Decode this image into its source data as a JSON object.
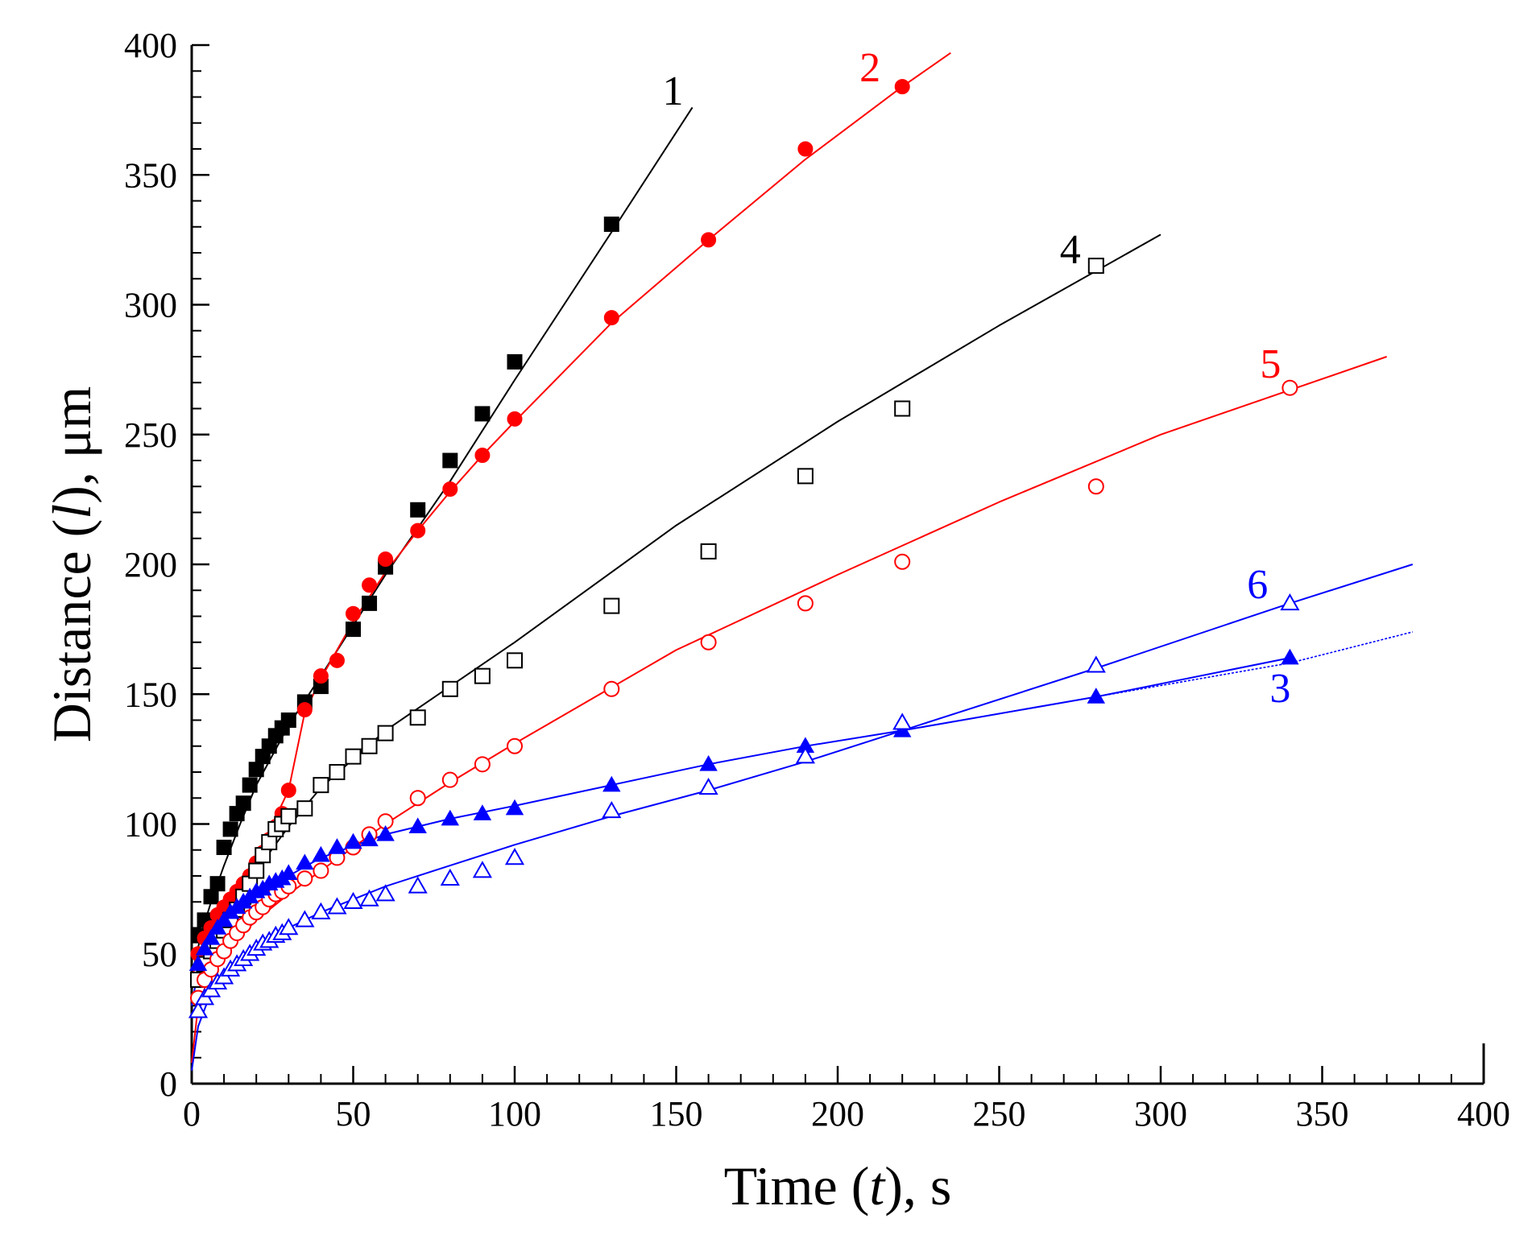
{
  "chart_data": {
    "type": "scatter",
    "title": "",
    "xlabel": {
      "pre": "Time (",
      "var": "t",
      "post": "), s"
    },
    "ylabel": {
      "pre": "Distance (",
      "var": "l",
      "post": "), μm"
    },
    "xlim": [
      0,
      400
    ],
    "ylim": [
      0,
      400
    ],
    "xticks": [
      0,
      50,
      100,
      150,
      200,
      250,
      300,
      350,
      400
    ],
    "yticks": [
      0,
      50,
      100,
      150,
      200,
      250,
      300,
      350,
      400
    ],
    "xtick_labels": [
      "0",
      "50",
      "100",
      "150",
      "200",
      "250",
      "300",
      "350",
      "400"
    ],
    "ytick_labels": [
      "0",
      "50",
      "100",
      "150",
      "200",
      "250",
      "300",
      "350",
      "400"
    ],
    "grid": false,
    "series": [
      {
        "name": "1",
        "label": "1",
        "color": "#000000",
        "marker": "square",
        "filled": true,
        "x": [
          2,
          4,
          6,
          8,
          10,
          12,
          14,
          16,
          18,
          20,
          22,
          24,
          26,
          28,
          30,
          35,
          40,
          50,
          55,
          60,
          70,
          80,
          90,
          100,
          130
        ],
        "y": [
          57,
          63,
          72,
          77,
          91,
          98,
          104,
          108,
          115,
          121,
          126,
          130,
          134,
          137,
          140,
          147,
          153,
          175,
          185,
          199,
          221,
          240,
          258,
          278,
          331
        ],
        "fit_x": [
          0,
          1,
          3,
          6,
          10,
          15,
          20,
          30,
          40,
          60,
          80,
          100,
          130,
          155
        ],
        "fit_y": [
          38,
          47,
          58,
          70,
          84,
          100,
          115,
          138,
          157,
          196,
          232,
          271,
          328,
          376
        ]
      },
      {
        "name": "2",
        "label": "2",
        "color": "#ff0000",
        "marker": "circle",
        "filled": true,
        "x": [
          2,
          4,
          6,
          8,
          10,
          12,
          14,
          16,
          18,
          20,
          22,
          24,
          26,
          28,
          30,
          35,
          40,
          45,
          50,
          55,
          60,
          70,
          80,
          90,
          100,
          130,
          160,
          190,
          220
        ],
        "y": [
          50,
          56,
          60,
          65,
          68,
          71,
          74,
          77,
          80,
          85,
          89,
          94,
          99,
          104,
          113,
          144,
          157,
          163,
          181,
          192,
          202,
          213,
          229,
          242,
          256,
          295,
          325,
          360,
          384
        ],
        "fit_x": [
          0,
          2,
          5,
          10,
          15,
          20,
          25,
          30,
          35,
          40,
          50,
          60,
          70,
          80,
          90,
          100,
          130,
          160,
          190,
          220,
          235
        ],
        "fit_y": [
          40,
          50,
          58,
          68,
          75,
          85,
          100,
          113,
          143,
          156,
          178,
          197,
          213,
          228,
          242,
          255,
          293,
          325,
          356,
          384,
          397
        ]
      },
      {
        "name": "4",
        "label": "4",
        "color": "#000000",
        "marker": "square",
        "filled": false,
        "x": [
          2,
          4,
          6,
          8,
          10,
          12,
          14,
          16,
          18,
          20,
          22,
          24,
          26,
          28,
          30,
          35,
          40,
          45,
          50,
          55,
          60,
          70,
          80,
          90,
          100,
          130,
          160,
          190,
          220,
          280
        ],
        "y": [
          40,
          46,
          51,
          55,
          59,
          63,
          67,
          72,
          77,
          82,
          88,
          93,
          98,
          100,
          103,
          106,
          115,
          120,
          126,
          130,
          135,
          141,
          152,
          157,
          163,
          184,
          205,
          234,
          260,
          315
        ],
        "fit_x": [
          0,
          2,
          5,
          10,
          20,
          30,
          40,
          60,
          80,
          100,
          150,
          200,
          250,
          300
        ],
        "fit_y": [
          36,
          45,
          55,
          65,
          82,
          99,
          114,
          136,
          153,
          170,
          215,
          255,
          292,
          327
        ]
      },
      {
        "name": "5",
        "label": "5",
        "color": "#ff0000",
        "marker": "circle",
        "filled": false,
        "x": [
          2,
          4,
          6,
          8,
          10,
          12,
          14,
          16,
          18,
          20,
          22,
          24,
          26,
          28,
          30,
          35,
          40,
          45,
          50,
          55,
          60,
          70,
          80,
          90,
          100,
          130,
          160,
          190,
          220,
          280,
          340
        ],
        "y": [
          33,
          40,
          44,
          48,
          51,
          55,
          58,
          61,
          64,
          66,
          68,
          71,
          73,
          74,
          76,
          79,
          82,
          87,
          91,
          96,
          101,
          110,
          117,
          123,
          130,
          152,
          170,
          185,
          201,
          230,
          268
        ],
        "fit_x": [
          0,
          2,
          5,
          10,
          20,
          30,
          40,
          60,
          80,
          100,
          150,
          200,
          250,
          300,
          370
        ],
        "fit_y": [
          8,
          30,
          40,
          50,
          63,
          73,
          82,
          100,
          116,
          131,
          167,
          196,
          224,
          250,
          280
        ]
      },
      {
        "name": "3",
        "label": "3",
        "color": "#0000ff",
        "marker": "triangle",
        "filled": true,
        "x": [
          2,
          4,
          6,
          8,
          10,
          12,
          14,
          16,
          18,
          20,
          22,
          24,
          26,
          28,
          30,
          35,
          40,
          45,
          50,
          55,
          60,
          70,
          80,
          90,
          100,
          130,
          160,
          190,
          220,
          280,
          340
        ],
        "y": [
          46,
          52,
          56,
          60,
          63,
          66,
          68,
          70,
          72,
          74,
          75,
          77,
          78,
          79,
          81,
          85,
          88,
          91,
          93,
          94,
          96,
          99,
          102,
          104,
          106,
          115,
          123,
          130,
          136,
          149,
          164
        ],
        "fit_x": [
          0,
          2,
          5,
          10,
          20,
          30,
          40,
          60,
          80,
          100,
          130,
          160,
          190,
          220,
          280,
          340
        ],
        "fit_y": [
          30,
          44,
          52,
          60,
          72,
          80,
          87,
          96,
          102,
          107,
          115,
          123,
          130,
          136,
          149,
          164
        ]
      },
      {
        "name": "6",
        "label": "6",
        "color": "#0000ff",
        "marker": "triangle",
        "filled": false,
        "x": [
          2,
          4,
          6,
          8,
          10,
          12,
          14,
          16,
          18,
          20,
          22,
          24,
          26,
          28,
          30,
          35,
          40,
          45,
          50,
          55,
          60,
          70,
          80,
          90,
          100,
          130,
          160,
          190,
          220,
          280,
          340
        ],
        "y": [
          28,
          33,
          36,
          39,
          41,
          44,
          46,
          48,
          50,
          52,
          54,
          55,
          57,
          58,
          60,
          63,
          66,
          68,
          70,
          71,
          73,
          76,
          79,
          82,
          87,
          105,
          114,
          126,
          139,
          161,
          185
        ],
        "fit_x": [
          0,
          2,
          5,
          10,
          20,
          30,
          40,
          60,
          80,
          100,
          130,
          160,
          190,
          220,
          280,
          340,
          378
        ],
        "fit_y": [
          5,
          22,
          32,
          42,
          53,
          60,
          66,
          76,
          84,
          92,
          103,
          113,
          124,
          136,
          160,
          185,
          200
        ]
      },
      {
        "name": "3-fit-ext",
        "label": "",
        "color": "#0000ff",
        "marker": "none",
        "filled": false,
        "dashed": true,
        "x": [],
        "y": [],
        "fit_x": [
          220,
          280,
          340,
          378
        ],
        "fit_y": [
          136,
          149,
          162,
          174
        ]
      }
    ],
    "labels": [
      {
        "text": "1",
        "color": "#000000",
        "x": 149,
        "y": 377
      },
      {
        "text": "2",
        "color": "#ff0000",
        "x": 210,
        "y": 386
      },
      {
        "text": "4",
        "color": "#000000",
        "x": 272,
        "y": 316
      },
      {
        "text": "5",
        "color": "#ff0000",
        "x": 334,
        "y": 272
      },
      {
        "text": "6",
        "color": "#0000ff",
        "x": 330,
        "y": 187
      },
      {
        "text": "3",
        "color": "#0000ff",
        "x": 337,
        "y": 147
      }
    ]
  }
}
